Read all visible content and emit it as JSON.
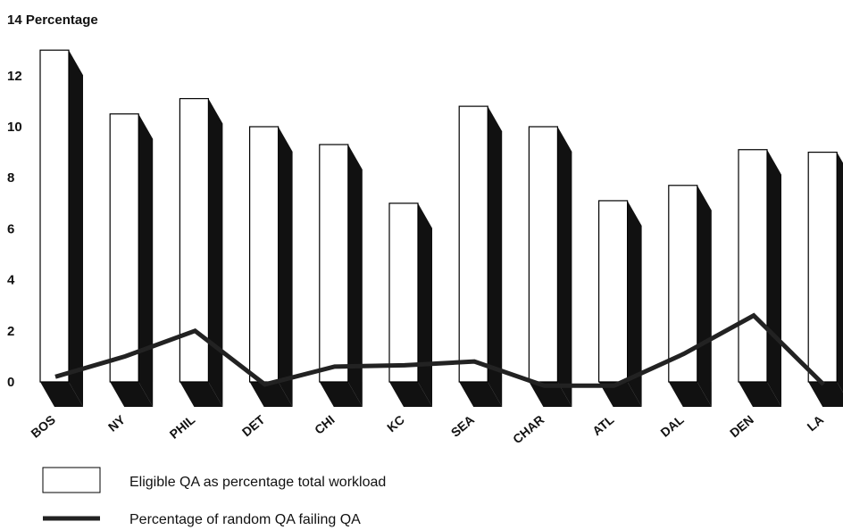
{
  "chart_data": {
    "type": "bar",
    "title": "",
    "ylabel": "Percentage",
    "xlabel": "",
    "ylim": [
      0,
      14
    ],
    "yticks": [
      0,
      2,
      4,
      6,
      8,
      10,
      12,
      14
    ],
    "grid": false,
    "legend_position": "bottom-left",
    "categories": [
      "BOS",
      "NY",
      "PHIL",
      "DET",
      "CHI",
      "KC",
      "SEA",
      "CHAR",
      "ATL",
      "DAL",
      "DEN",
      "LA"
    ],
    "series": [
      {
        "name": "Eligible QA as percentage total workload",
        "type": "bar",
        "values": [
          13.0,
          10.5,
          11.1,
          10.0,
          9.3,
          7.0,
          10.8,
          10.0,
          7.1,
          7.7,
          9.1,
          9.0
        ]
      },
      {
        "name": "Percentage of random QA failing QA",
        "type": "line",
        "values": [
          0.2,
          1.0,
          2.0,
          -0.1,
          0.6,
          0.65,
          0.8,
          -0.15,
          -0.15,
          1.1,
          2.6,
          -0.1
        ]
      }
    ],
    "colors": {
      "bar_fill": "#ffffff",
      "bar_stroke": "#000000",
      "shadow": "#111111",
      "line": "#222222"
    }
  }
}
